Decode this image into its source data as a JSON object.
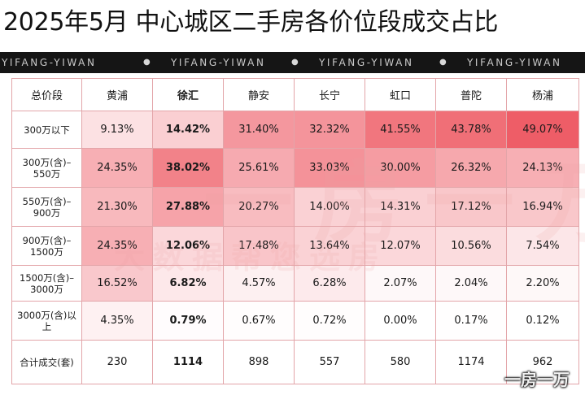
{
  "title": "2025年5月 中心城区二手房各价位段成交占比",
  "banner": [
    "YIFANG-YIWAN",
    "YIFANG-YIWAN",
    "YIFANG-YIWAN",
    "YIFANG-YIWAN"
  ],
  "watermark": {
    "big": "一房一万",
    "small": "大数据帮您选房",
    "corner": "一房一万"
  },
  "colors": {
    "high": "#ee5a64",
    "low": "#ffffff",
    "border": "#e3a5a9",
    "banner": "#151515"
  },
  "chart_data": {
    "type": "table",
    "corner_header": "总价段",
    "columns": [
      "黄浦",
      "徐汇",
      "静安",
      "长宁",
      "虹口",
      "普陀",
      "杨浦"
    ],
    "bold_column": "徐汇",
    "rows": [
      {
        "label": "300万以下",
        "values": [
          "9.13%",
          "14.42%",
          "31.40%",
          "32.32%",
          "41.55%",
          "43.78%",
          "49.07%"
        ]
      },
      {
        "label": "300万(含)–550万",
        "values": [
          "24.35%",
          "38.02%",
          "25.61%",
          "33.03%",
          "30.00%",
          "26.32%",
          "24.13%"
        ]
      },
      {
        "label": "550万(含)–900万",
        "values": [
          "21.30%",
          "27.88%",
          "20.27%",
          "14.00%",
          "14.31%",
          "17.12%",
          "16.94%"
        ]
      },
      {
        "label": "900万(含)–1500万",
        "values": [
          "24.35%",
          "12.06%",
          "17.48%",
          "13.64%",
          "12.07%",
          "10.56%",
          "7.54%"
        ]
      },
      {
        "label": "1500万(含)–3000万",
        "values": [
          "16.52%",
          "6.82%",
          "4.57%",
          "6.28%",
          "2.07%",
          "2.04%",
          "2.20%"
        ]
      },
      {
        "label": "3000万(含)以上",
        "values": [
          "4.35%",
          "0.79%",
          "0.67%",
          "0.72%",
          "0.00%",
          "0.17%",
          "0.12%"
        ]
      }
    ],
    "total_row": {
      "label": "合计成交(套)",
      "values": [
        "230",
        "1114",
        "898",
        "557",
        "580",
        "1174",
        "962"
      ]
    }
  }
}
